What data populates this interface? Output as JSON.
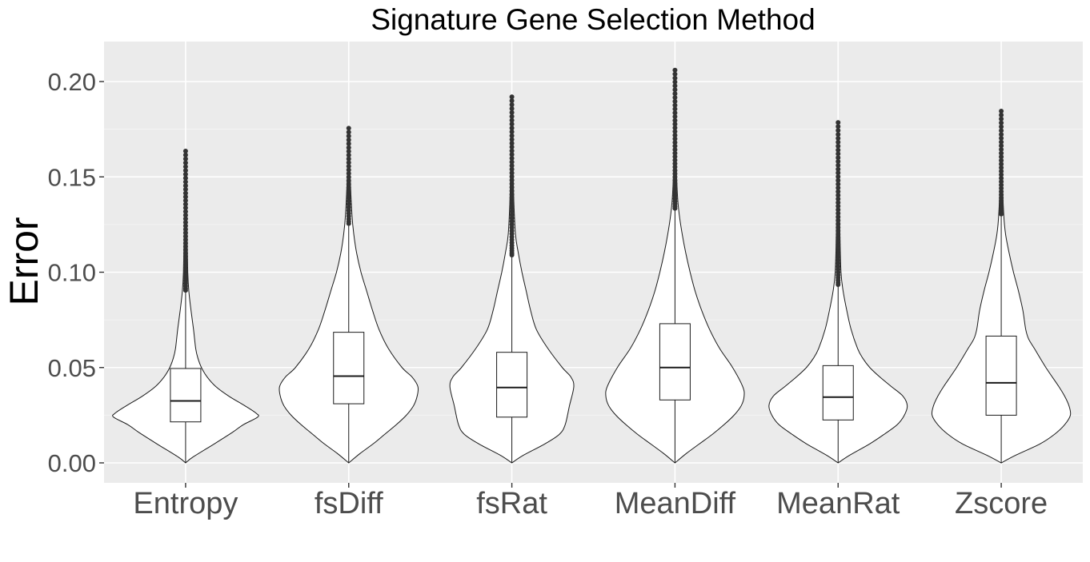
{
  "chart_data": {
    "type": "violin",
    "title": "Signature Gene Selection Method",
    "xlabel": "",
    "ylabel": "Error",
    "ylim": [
      -0.01,
      0.2225
    ],
    "yticks": [
      0.0,
      0.05,
      0.1,
      0.15,
      0.2
    ],
    "ytick_labels": [
      "0.00",
      "0.05",
      "0.10",
      "0.15",
      "0.20"
    ],
    "grid": true,
    "categories": [
      "Entropy",
      "fsDiff",
      "fsRat",
      "MeanDiff",
      "MeanRat",
      "Zscore"
    ],
    "series": [
      {
        "category": "Entropy",
        "box": {
          "lower_whisker": 0.0,
          "q1": 0.0215,
          "median": 0.0325,
          "q3": 0.0495,
          "upper_whisker": 0.0905
        },
        "outliers_range": [
          0.0905,
          0.1635
        ],
        "violin_profile": [
          [
            0.0,
            0.0
          ],
          [
            0.003,
            0.1
          ],
          [
            0.01,
            0.4
          ],
          [
            0.016,
            0.65
          ],
          [
            0.02,
            0.8
          ],
          [
            0.024,
            1.0
          ],
          [
            0.026,
            0.98
          ],
          [
            0.03,
            0.82
          ],
          [
            0.035,
            0.6
          ],
          [
            0.04,
            0.42
          ],
          [
            0.045,
            0.3
          ],
          [
            0.05,
            0.22
          ],
          [
            0.055,
            0.17
          ],
          [
            0.06,
            0.14
          ],
          [
            0.07,
            0.11
          ],
          [
            0.08,
            0.075
          ],
          [
            0.09,
            0.045
          ],
          [
            0.1,
            0.03
          ],
          [
            0.12,
            0.02
          ],
          [
            0.14,
            0.012
          ],
          [
            0.1635,
            0.0
          ]
        ]
      },
      {
        "category": "fsDiff",
        "box": {
          "lower_whisker": 0.0,
          "q1": 0.031,
          "median": 0.0455,
          "q3": 0.0685,
          "upper_whisker": 0.1255
        },
        "outliers_range": [
          0.1255,
          0.1755
        ],
        "violin_profile": [
          [
            0.0,
            0.0
          ],
          [
            0.005,
            0.16
          ],
          [
            0.01,
            0.34
          ],
          [
            0.015,
            0.5
          ],
          [
            0.02,
            0.66
          ],
          [
            0.025,
            0.8
          ],
          [
            0.03,
            0.9
          ],
          [
            0.035,
            0.95
          ],
          [
            0.04,
            0.96
          ],
          [
            0.045,
            0.88
          ],
          [
            0.05,
            0.74
          ],
          [
            0.06,
            0.55
          ],
          [
            0.07,
            0.42
          ],
          [
            0.08,
            0.33
          ],
          [
            0.09,
            0.25
          ],
          [
            0.1,
            0.17
          ],
          [
            0.11,
            0.11
          ],
          [
            0.12,
            0.07
          ],
          [
            0.13,
            0.045
          ],
          [
            0.15,
            0.02
          ],
          [
            0.1755,
            0.0
          ]
        ]
      },
      {
        "category": "fsRat",
        "box": {
          "lower_whisker": 0.0,
          "q1": 0.024,
          "median": 0.0395,
          "q3": 0.058,
          "upper_whisker": 0.109
        },
        "outliers_range": [
          0.109,
          0.192
        ],
        "violin_profile": [
          [
            0.0,
            0.0
          ],
          [
            0.004,
            0.16
          ],
          [
            0.01,
            0.46
          ],
          [
            0.015,
            0.66
          ],
          [
            0.02,
            0.74
          ],
          [
            0.03,
            0.8
          ],
          [
            0.04,
            0.86
          ],
          [
            0.045,
            0.82
          ],
          [
            0.05,
            0.7
          ],
          [
            0.06,
            0.5
          ],
          [
            0.07,
            0.34
          ],
          [
            0.08,
            0.26
          ],
          [
            0.09,
            0.2
          ],
          [
            0.1,
            0.14
          ],
          [
            0.11,
            0.09
          ],
          [
            0.12,
            0.05
          ],
          [
            0.14,
            0.025
          ],
          [
            0.16,
            0.015
          ],
          [
            0.192,
            0.0
          ]
        ]
      },
      {
        "category": "MeanDiff",
        "box": {
          "lower_whisker": 0.0,
          "q1": 0.033,
          "median": 0.05,
          "q3": 0.073,
          "upper_whisker": 0.1335
        },
        "outliers_range": [
          0.1335,
          0.206
        ],
        "violin_profile": [
          [
            0.0,
            0.0
          ],
          [
            0.005,
            0.16
          ],
          [
            0.01,
            0.34
          ],
          [
            0.015,
            0.52
          ],
          [
            0.02,
            0.68
          ],
          [
            0.025,
            0.82
          ],
          [
            0.03,
            0.92
          ],
          [
            0.035,
            0.96
          ],
          [
            0.04,
            0.94
          ],
          [
            0.05,
            0.8
          ],
          [
            0.06,
            0.62
          ],
          [
            0.07,
            0.48
          ],
          [
            0.08,
            0.37
          ],
          [
            0.09,
            0.28
          ],
          [
            0.1,
            0.21
          ],
          [
            0.11,
            0.15
          ],
          [
            0.12,
            0.1
          ],
          [
            0.13,
            0.06
          ],
          [
            0.14,
            0.035
          ],
          [
            0.16,
            0.015
          ],
          [
            0.206,
            0.0
          ]
        ]
      },
      {
        "category": "MeanRat",
        "box": {
          "lower_whisker": 0.0,
          "q1": 0.0225,
          "median": 0.0345,
          "q3": 0.051,
          "upper_whisker": 0.0935
        },
        "outliers_range": [
          0.0935,
          0.1785
        ],
        "violin_profile": [
          [
            0.0,
            0.0
          ],
          [
            0.004,
            0.16
          ],
          [
            0.01,
            0.44
          ],
          [
            0.015,
            0.64
          ],
          [
            0.02,
            0.82
          ],
          [
            0.025,
            0.92
          ],
          [
            0.03,
            0.96
          ],
          [
            0.035,
            0.9
          ],
          [
            0.04,
            0.74
          ],
          [
            0.045,
            0.58
          ],
          [
            0.05,
            0.44
          ],
          [
            0.055,
            0.34
          ],
          [
            0.06,
            0.27
          ],
          [
            0.07,
            0.18
          ],
          [
            0.08,
            0.12
          ],
          [
            0.09,
            0.07
          ],
          [
            0.1,
            0.04
          ],
          [
            0.12,
            0.025
          ],
          [
            0.14,
            0.015
          ],
          [
            0.1785,
            0.0
          ]
        ]
      },
      {
        "category": "Zscore",
        "box": {
          "lower_whisker": 0.0,
          "q1": 0.025,
          "median": 0.042,
          "q3": 0.0665,
          "upper_whisker": 0.1305
        },
        "outliers_range": [
          0.1305,
          0.1845
        ],
        "violin_profile": [
          [
            0.0,
            0.0
          ],
          [
            0.004,
            0.2
          ],
          [
            0.01,
            0.54
          ],
          [
            0.015,
            0.74
          ],
          [
            0.02,
            0.88
          ],
          [
            0.025,
            0.96
          ],
          [
            0.03,
            0.94
          ],
          [
            0.035,
            0.88
          ],
          [
            0.04,
            0.8
          ],
          [
            0.05,
            0.62
          ],
          [
            0.06,
            0.46
          ],
          [
            0.065,
            0.38
          ],
          [
            0.07,
            0.34
          ],
          [
            0.08,
            0.3
          ],
          [
            0.09,
            0.24
          ],
          [
            0.1,
            0.17
          ],
          [
            0.11,
            0.11
          ],
          [
            0.12,
            0.06
          ],
          [
            0.13,
            0.035
          ],
          [
            0.15,
            0.015
          ],
          [
            0.1845,
            0.0
          ]
        ]
      }
    ]
  },
  "colors": {
    "panel_background": "#ebebeb",
    "grid_major": "#ffffff",
    "grid_minor": "#f4f4f4",
    "violin_fill": "#ffffff",
    "outline": "#1a1a1a",
    "outlier": "#333333",
    "tick_label": "#4d4d4d",
    "title": "#000000"
  }
}
